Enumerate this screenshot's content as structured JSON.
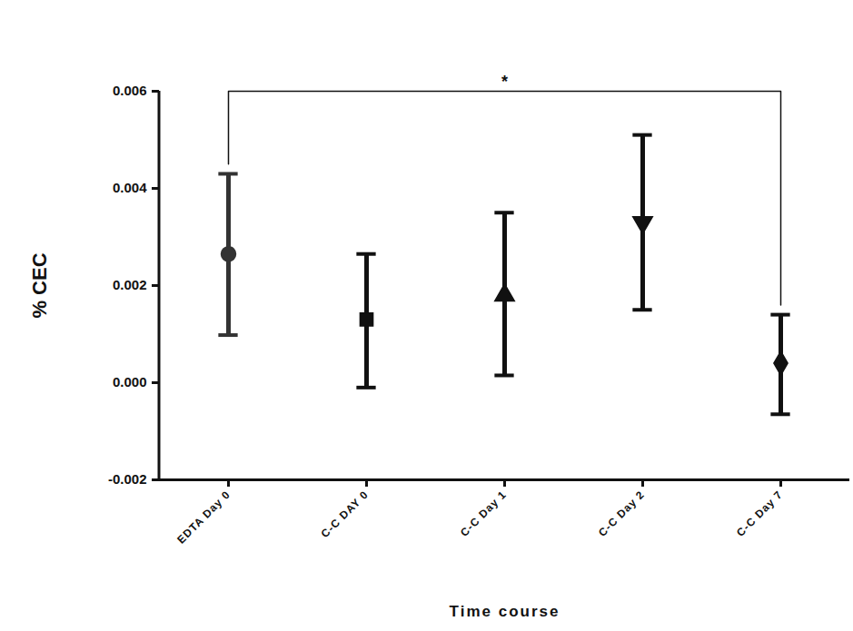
{
  "chart_data": {
    "type": "scatter",
    "x_label": "Time course",
    "y_label": "% CEC",
    "categories": [
      "EDTA Day 0",
      "C-C DAY 0",
      "C-C Day 1",
      "C-C Day 2",
      "C-C Day 7"
    ],
    "values": [
      0.00265,
      0.0013,
      0.0018,
      0.0033,
      0.0004
    ],
    "error_low": [
      0.00098,
      -0.0001,
      0.00015,
      0.0015,
      -0.00065
    ],
    "error_high": [
      0.0043,
      0.00265,
      0.0035,
      0.0051,
      0.0014
    ],
    "colors": [
      "#333333",
      "#111111",
      "#111111",
      "#111111",
      "#111111"
    ],
    "markers": [
      "circle",
      "square",
      "triangle",
      "triangle-down",
      "diamond"
    ],
    "ylim": [
      -0.002,
      0.006
    ],
    "yticks": [
      -0.002,
      {
        "value": 0,
        "label": "0.000"
      },
      0.002,
      0.004,
      0.006
    ],
    "grid": false,
    "annotations": [
      {
        "text": "*",
        "from": "EDTA Day 0",
        "to": "C-C Day 7"
      }
    ]
  }
}
